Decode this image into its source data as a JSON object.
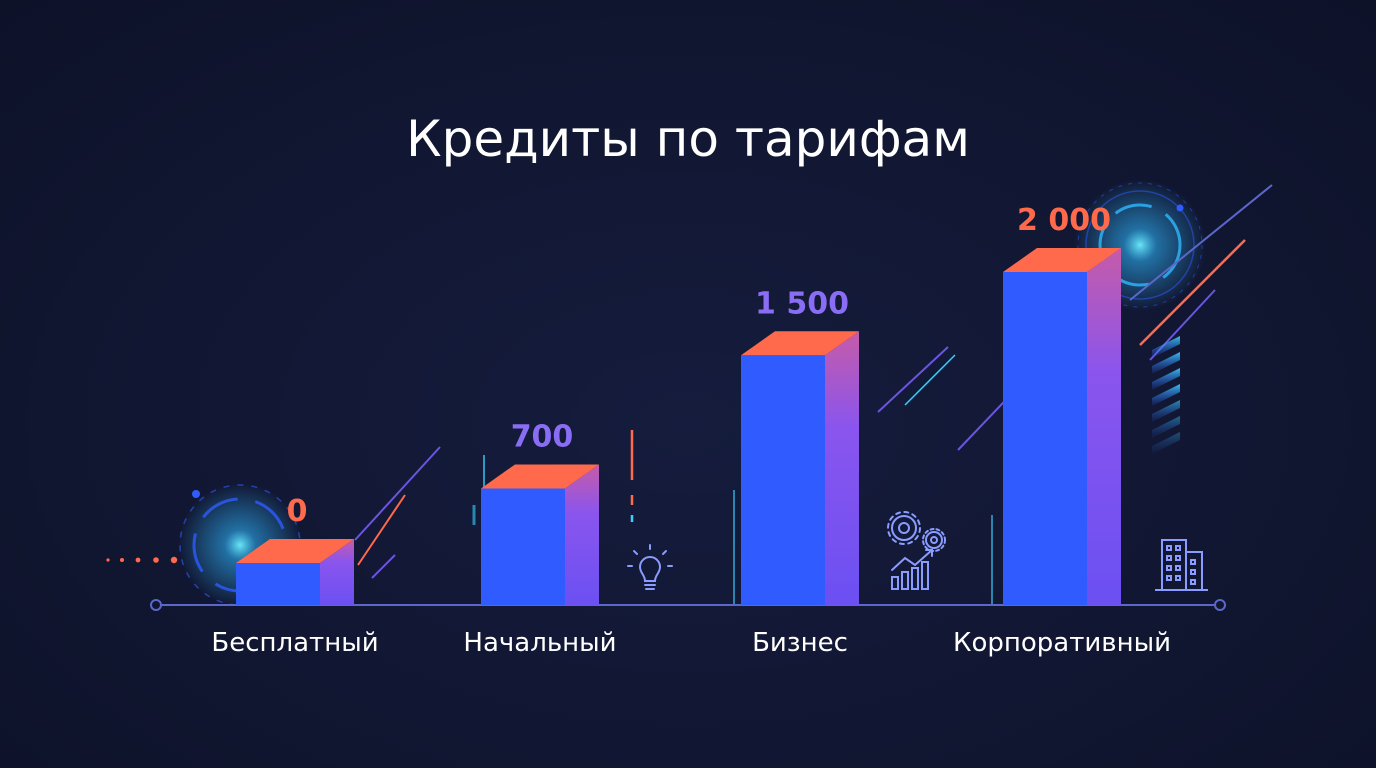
{
  "chart_data": {
    "type": "bar",
    "title": "Кредиты по тарифам",
    "xlabel": "",
    "ylabel": "",
    "categories": [
      "Бесплатный",
      "Начальный",
      "Бизнес",
      "Корпоративный"
    ],
    "values": [
      0,
      700,
      1500,
      2000
    ],
    "value_labels": [
      "0",
      "700",
      "1 500",
      "2 000"
    ],
    "ylim": [
      0,
      2000
    ],
    "grid": false,
    "legend": "none"
  },
  "colors": {
    "background": "#111733",
    "bar_front": "#2f5bff",
    "bar_side": "#7b55f0",
    "bar_top": "#ff6a4d",
    "axis": "#5b67c9",
    "label_low": "#ff6a4d",
    "label_mid": "#8a6df5",
    "accent_cyan": "#39d0ff"
  },
  "icons": [
    "lightbulb-icon",
    "gears-chart-icon",
    "building-icon"
  ]
}
